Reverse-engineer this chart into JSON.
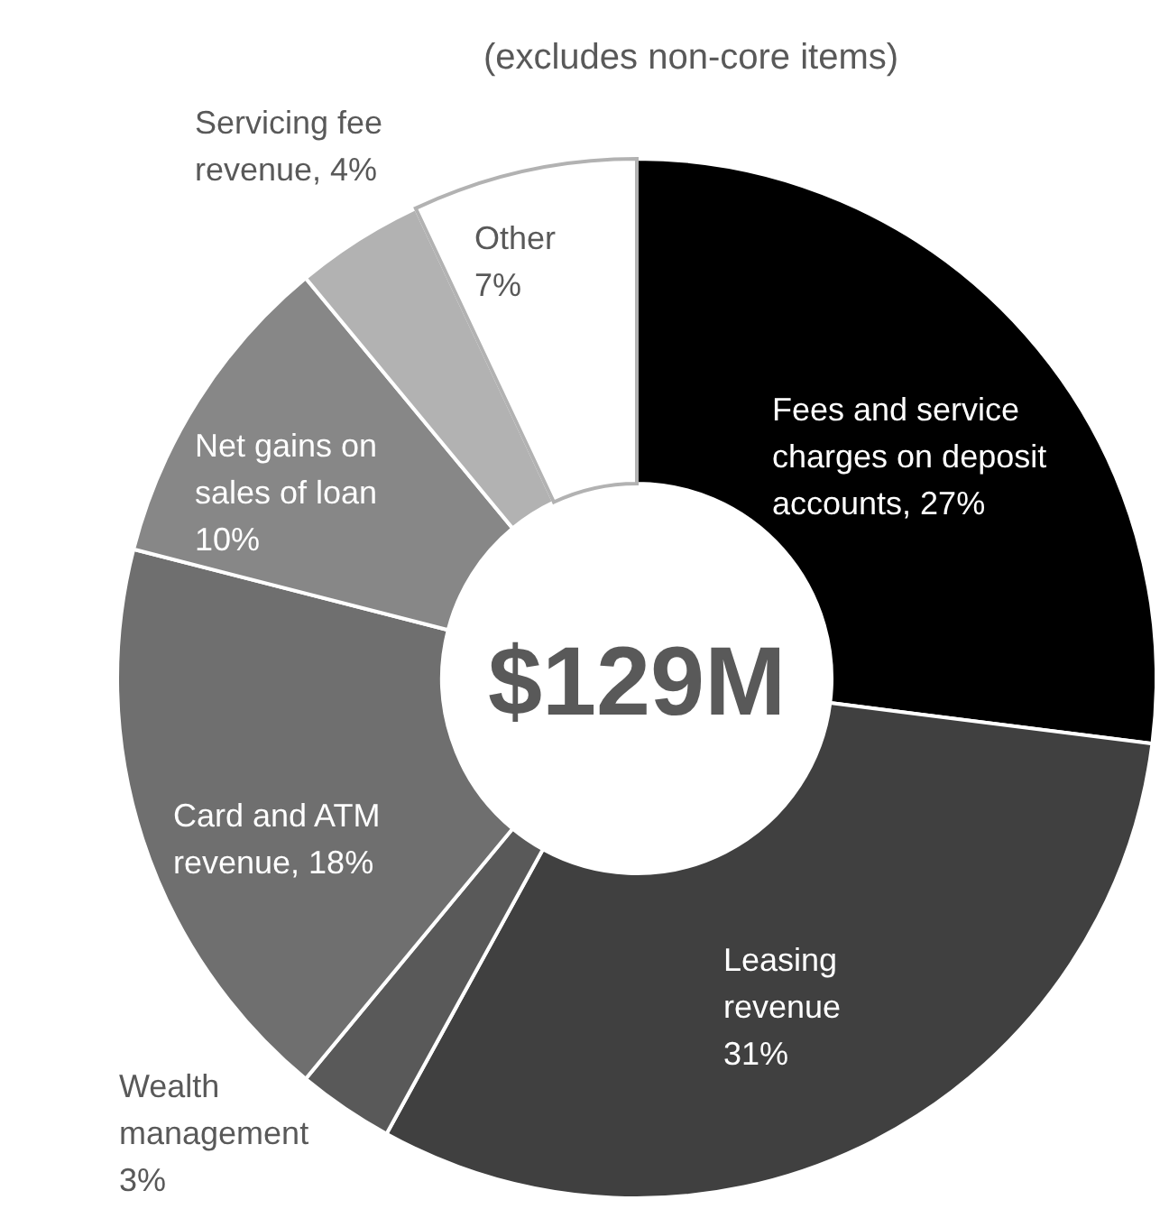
{
  "chart_data": {
    "type": "donut",
    "title": "(excludes non-core items)",
    "categories": [
      "Fees and service charges on deposit accounts, 27%",
      "Leasing revenue 31%",
      "Wealth management 3%",
      "Card and ATM revenue, 18%",
      "Net gains on sales of loan 10%",
      "Servicing fee revenue, 4%",
      "Other 7%"
    ],
    "values": [
      27,
      31,
      3,
      18,
      10,
      4,
      7
    ],
    "colors": [
      "#000000",
      "#404040",
      "#595959",
      "#6f6f6f",
      "#878787",
      "#b2b2b2",
      "#ffffff"
    ],
    "annotations": [
      "$129M"
    ]
  }
}
